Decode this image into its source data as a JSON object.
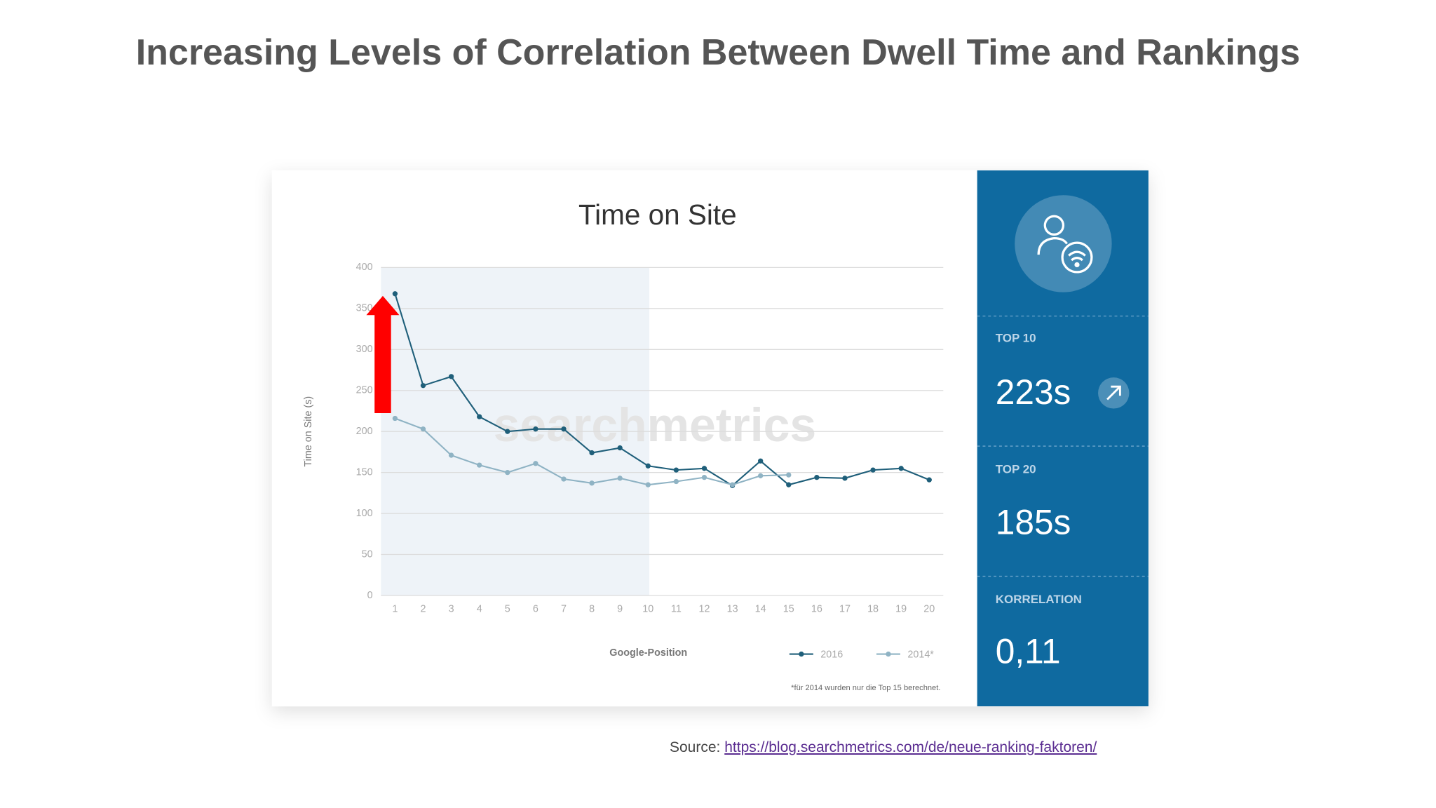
{
  "title": "Increasing Levels of Correlation Between Dwell Time and Rankings",
  "source_label": "Source:",
  "source_url": "https://blog.searchmetrics.com/de/neue-ranking-faktoren/",
  "panel": [
    {
      "label": "TOP 10",
      "value": "223s"
    },
    {
      "label": "TOP 20",
      "value": "185s"
    },
    {
      "label": "KORRELATION",
      "value": "0,11"
    }
  ],
  "chart_data": {
    "type": "line",
    "title": "Time on Site",
    "watermark": "searchmetrics",
    "x_label": "Google-Position",
    "y_label": "Time on Site (s)",
    "footnote": "*für 2014 wurden nur die Top 15 berechnet.",
    "categories": [
      "1",
      "2",
      "3",
      "4",
      "5",
      "6",
      "7",
      "8",
      "9",
      "10",
      "11",
      "12",
      "13",
      "14",
      "15",
      "16",
      "17",
      "18",
      "19",
      "20"
    ],
    "series": [
      {
        "name": "2016",
        "color": "#1f5f7a",
        "values": [
          368,
          256,
          267,
          218,
          200,
          203,
          203,
          174,
          180,
          158,
          153,
          155,
          134,
          164,
          135,
          144,
          143,
          153,
          155,
          141
        ]
      },
      {
        "name": "2014*",
        "color": "#8fb3c4",
        "values": [
          216,
          203,
          171,
          159,
          150,
          161,
          142,
          137,
          143,
          135,
          139,
          144,
          135,
          146,
          147,
          null,
          null,
          null,
          null,
          null
        ]
      }
    ],
    "ylim": [
      0,
      400
    ],
    "yticks": [
      0,
      50,
      100,
      150,
      200,
      250,
      300,
      350,
      400
    ],
    "grid": true
  }
}
